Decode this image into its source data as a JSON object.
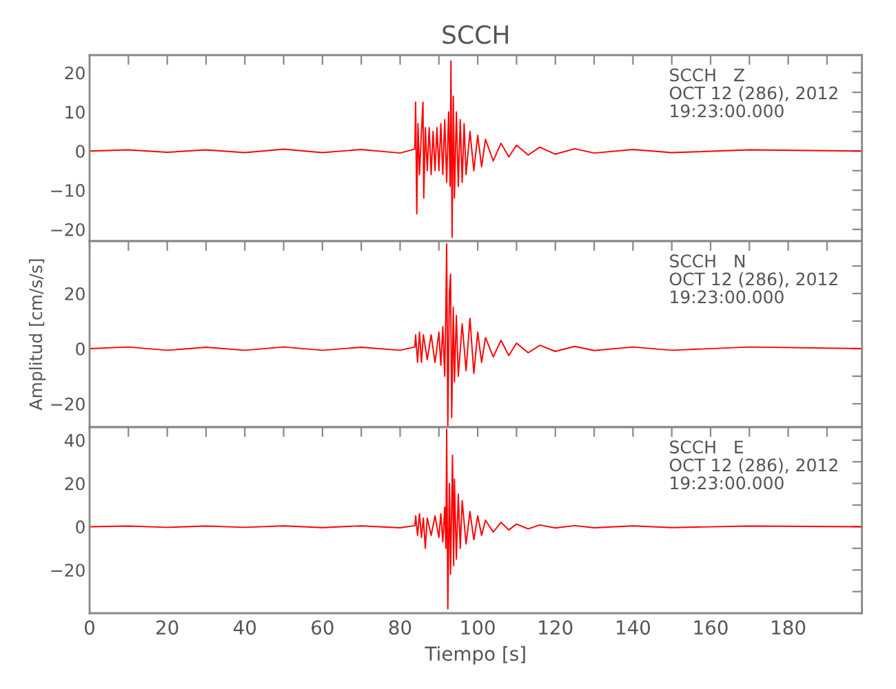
{
  "chart_data": [
    {
      "type": "line",
      "title": "SCCH",
      "tick_labels": "y",
      "xlim": [
        0,
        199
      ],
      "xticks": [
        {
          "value": 0,
          "label": null
        },
        {
          "value": 10,
          "label": null
        },
        {
          "value": 20,
          "label": null
        },
        {
          "value": 30,
          "label": null
        },
        {
          "value": 40,
          "label": null
        },
        {
          "value": 50,
          "label": null
        },
        {
          "value": 60,
          "label": null
        },
        {
          "value": 70,
          "label": null
        },
        {
          "value": 80,
          "label": null
        },
        {
          "value": 90,
          "label": null
        },
        {
          "value": 100,
          "label": null
        },
        {
          "value": 110,
          "label": null
        },
        {
          "value": 120,
          "label": null
        },
        {
          "value": 130,
          "label": null
        },
        {
          "value": 140,
          "label": null
        },
        {
          "value": 150,
          "label": null
        },
        {
          "value": 160,
          "label": null
        },
        {
          "value": 170,
          "label": null
        },
        {
          "value": 180,
          "label": null
        },
        {
          "value": 190,
          "label": null
        }
      ],
      "ylim": [
        -23,
        24.5
      ],
      "yticks": [
        {
          "value": -20,
          "label": "−20"
        },
        {
          "value": -15,
          "label": null
        },
        {
          "value": -10,
          "label": "−10"
        },
        {
          "value": -5,
          "label": null
        },
        0,
        {
          "value": 5,
          "label": null
        },
        10,
        {
          "value": 15,
          "label": null
        },
        20
      ],
      "annotations": [
        "SCCH   Z\nOCT 12 (286), 2012\n19:23:00.000"
      ],
      "series": [
        {
          "color": "#ff0000",
          "x": [
            0,
            10,
            20,
            30,
            40,
            50,
            60,
            70,
            80,
            83.8,
            84,
            84.3,
            84.6,
            85,
            85.5,
            85.9,
            86.1,
            86.5,
            87,
            87.5,
            88,
            88.5,
            89,
            89.5,
            90,
            90.5,
            91,
            91.5,
            92,
            92.5,
            92.9,
            93.1,
            93.4,
            93.7,
            94,
            94.5,
            95,
            95.5,
            96,
            96.5,
            97,
            98,
            99,
            100,
            101,
            102,
            104,
            106,
            108,
            110,
            113,
            116,
            120,
            125,
            130,
            140,
            150,
            170,
            199
          ],
          "values": [
            0,
            0.3,
            -0.3,
            0.3,
            -0.4,
            0.5,
            -0.4,
            0.4,
            -0.5,
            0.5,
            12.5,
            -16,
            7,
            -6,
            5,
            12.5,
            -12,
            6,
            -5,
            6,
            -6,
            5,
            -5,
            6,
            -5,
            7,
            -6,
            8,
            -8,
            10,
            -9,
            23,
            -22,
            14,
            -12,
            10,
            -9,
            8,
            -8,
            7,
            -6,
            5,
            -5,
            4,
            -4,
            3,
            -2.5,
            2,
            -1.5,
            1.5,
            -1,
            1,
            -0.8,
            0.6,
            -0.5,
            0.4,
            -0.4,
            0.3,
            0
          ]
        }
      ]
    },
    {
      "type": "line",
      "ylabel": "Amplitud [cm/s/s]",
      "tick_labels": "y",
      "xlim": [
        0,
        199
      ],
      "xticks": [
        {
          "value": 0,
          "label": null
        },
        {
          "value": 10,
          "label": null
        },
        {
          "value": 20,
          "label": null
        },
        {
          "value": 30,
          "label": null
        },
        {
          "value": 40,
          "label": null
        },
        {
          "value": 50,
          "label": null
        },
        {
          "value": 60,
          "label": null
        },
        {
          "value": 70,
          "label": null
        },
        {
          "value": 80,
          "label": null
        },
        {
          "value": 90,
          "label": null
        },
        {
          "value": 100,
          "label": null
        },
        {
          "value": 110,
          "label": null
        },
        {
          "value": 120,
          "label": null
        },
        {
          "value": 130,
          "label": null
        },
        {
          "value": 140,
          "label": null
        },
        {
          "value": 150,
          "label": null
        },
        {
          "value": 160,
          "label": null
        },
        {
          "value": 170,
          "label": null
        },
        {
          "value": 180,
          "label": null
        },
        {
          "value": 190,
          "label": null
        }
      ],
      "ylim": [
        -28.5,
        39
      ],
      "yticks": [
        {
          "value": -20,
          "label": "−20"
        },
        {
          "value": -10,
          "label": null
        },
        0,
        {
          "value": 10,
          "label": null
        },
        20,
        {
          "value": 30,
          "label": null
        }
      ],
      "annotations": [
        "SCCH   N\nOCT 12 (286), 2012\n19:23:00.000"
      ],
      "series": [
        {
          "color": "#ff0000",
          "x": [
            0,
            10,
            20,
            30,
            40,
            50,
            60,
            70,
            80,
            83.8,
            84,
            84.5,
            85,
            85.5,
            86,
            87,
            88,
            89,
            90,
            90.5,
            91,
            91.5,
            91.8,
            92,
            92.3,
            92.7,
            93,
            93.3,
            93.7,
            94,
            94.5,
            95,
            96,
            97,
            98,
            99,
            100,
            101,
            102,
            104,
            106,
            108,
            110,
            113,
            116,
            120,
            125,
            130,
            140,
            150,
            170,
            199
          ],
          "values": [
            0,
            0.6,
            -0.6,
            0.5,
            -0.6,
            0.6,
            -0.6,
            0.5,
            -0.6,
            0.6,
            5,
            -5,
            6,
            -5,
            5,
            -4,
            5,
            -5,
            6,
            -6,
            8,
            -10,
            15,
            38,
            -28,
            20,
            27,
            -25,
            15,
            -12,
            12,
            -10,
            9,
            -8,
            11,
            -9,
            6,
            -5,
            4,
            -3,
            3,
            -2.5,
            2,
            -1.5,
            1.2,
            -1,
            0.8,
            -0.7,
            0.6,
            -0.6,
            0.6,
            0
          ]
        }
      ]
    },
    {
      "type": "line",
      "xlabel": "Tiempo [s]",
      "xlim": [
        0,
        199
      ],
      "xticks": [
        0,
        {
          "value": 10,
          "label": null
        },
        20,
        {
          "value": 30,
          "label": null
        },
        40,
        {
          "value": 50,
          "label": null
        },
        60,
        {
          "value": 70,
          "label": null
        },
        80,
        {
          "value": 90,
          "label": null
        },
        100,
        {
          "value": 110,
          "label": null
        },
        120,
        {
          "value": 130,
          "label": null
        },
        140,
        {
          "value": 150,
          "label": null
        },
        160,
        {
          "value": 170,
          "label": null
        },
        180,
        {
          "value": 190,
          "label": null
        }
      ],
      "ylim": [
        -40,
        46
      ],
      "yticks": [
        {
          "value": -30,
          "label": null
        },
        {
          "value": -20,
          "label": "−20"
        },
        {
          "value": -10,
          "label": null
        },
        0,
        {
          "value": 10,
          "label": null
        },
        20,
        {
          "value": 30,
          "label": null
        },
        40
      ],
      "annotations": [
        "SCCH   E\nOCT 12 (286), 2012\n19:23:00.000"
      ],
      "series": [
        {
          "color": "#ff0000",
          "x": [
            0,
            10,
            20,
            30,
            40,
            50,
            60,
            70,
            80,
            83.8,
            84,
            84.5,
            85,
            85.5,
            86,
            86.5,
            87,
            88,
            89,
            90,
            90.5,
            91,
            91.5,
            91.8,
            92,
            92.3,
            92.7,
            93,
            93.5,
            93.8,
            94,
            94.5,
            95,
            95.5,
            96,
            97,
            98,
            99,
            100,
            101,
            102,
            104,
            106,
            108,
            110,
            113,
            116,
            120,
            125,
            130,
            140,
            150,
            170,
            199
          ],
          "values": [
            0,
            0.3,
            -0.3,
            0.3,
            -0.3,
            0.4,
            -0.4,
            0.4,
            -0.5,
            0.5,
            5,
            -4,
            6,
            -5,
            4,
            -10,
            4,
            -4,
            5,
            -5,
            6,
            -7,
            9,
            -10,
            45,
            -38,
            20,
            -22,
            33,
            -18,
            22,
            -15,
            15,
            -10,
            12,
            -8,
            7,
            -6,
            5,
            -4,
            3,
            -2.5,
            2,
            -1.5,
            1.2,
            -1,
            0.8,
            -0.6,
            0.5,
            -0.5,
            0.4,
            -0.4,
            0.3,
            0
          ]
        }
      ]
    }
  ]
}
